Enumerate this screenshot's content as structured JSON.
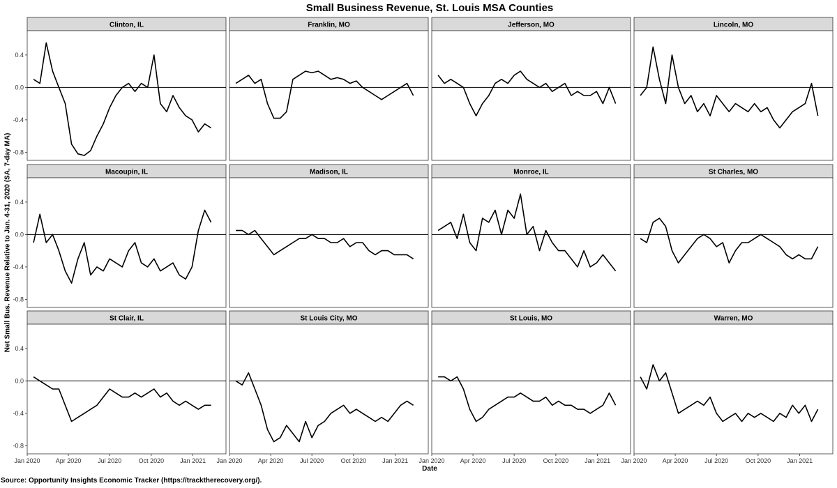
{
  "chart_data": {
    "type": "line",
    "title": "Small Business Revenue, St. Louis MSA Counties",
    "xlabel": "Date",
    "ylabel": "Net Small Bus. Revenue Relative to Jan. 4-31, 2020 (SA, 7-day MA)",
    "source": "Source: Opportunity Insights Economic Tracker (https://tracktherecovery.org/).",
    "ylim": [
      -0.9,
      0.7
    ],
    "yticks": [
      -0.8,
      -0.4,
      0.0,
      0.4
    ],
    "ytick_labels": [
      "-0.8",
      "-0.4",
      "0.0",
      "0.4"
    ],
    "xlim": [
      "2020-01-01",
      "2021-03-15"
    ],
    "xticks": [
      "2020-01-01",
      "2020-04-01",
      "2020-07-01",
      "2020-10-01",
      "2021-01-01"
    ],
    "xtick_labels": [
      "Jan 2020",
      "Apr 2020",
      "Jul 2020",
      "Oct 2020",
      "Jan 2021"
    ],
    "reference_line_y": 0,
    "grid": false,
    "line_color": "#000000",
    "strip_color": "#d9d9d9",
    "panels": [
      {
        "name": "Clinton, IL",
        "x": [
          "2020-01-15",
          "2020-01-29",
          "2020-02-12",
          "2020-02-26",
          "2020-03-11",
          "2020-03-25",
          "2020-04-08",
          "2020-04-22",
          "2020-05-06",
          "2020-05-20",
          "2020-06-03",
          "2020-06-17",
          "2020-07-01",
          "2020-07-15",
          "2020-07-29",
          "2020-08-12",
          "2020-08-26",
          "2020-09-09",
          "2020-09-23",
          "2020-10-07",
          "2020-10-21",
          "2020-11-04",
          "2020-11-18",
          "2020-12-02",
          "2020-12-16",
          "2020-12-30",
          "2021-01-13",
          "2021-01-27",
          "2021-02-10"
        ],
        "y": [
          0.1,
          0.05,
          0.55,
          0.2,
          0.0,
          -0.2,
          -0.7,
          -0.82,
          -0.84,
          -0.78,
          -0.6,
          -0.45,
          -0.25,
          -0.1,
          0.0,
          0.05,
          -0.05,
          0.05,
          0.0,
          0.4,
          -0.2,
          -0.3,
          -0.1,
          -0.25,
          -0.35,
          -0.4,
          -0.55,
          -0.45,
          -0.5
        ]
      },
      {
        "name": "Franklin, MO",
        "x": [
          "2020-01-15",
          "2020-01-29",
          "2020-02-12",
          "2020-02-26",
          "2020-03-11",
          "2020-03-25",
          "2020-04-08",
          "2020-04-22",
          "2020-05-06",
          "2020-05-20",
          "2020-06-03",
          "2020-06-17",
          "2020-07-01",
          "2020-07-15",
          "2020-07-29",
          "2020-08-12",
          "2020-08-26",
          "2020-09-09",
          "2020-09-23",
          "2020-10-07",
          "2020-10-21",
          "2020-11-04",
          "2020-11-18",
          "2020-12-02",
          "2020-12-16",
          "2020-12-30",
          "2021-01-13",
          "2021-01-27",
          "2021-02-10"
        ],
        "y": [
          0.05,
          0.1,
          0.15,
          0.05,
          0.1,
          -0.2,
          -0.38,
          -0.38,
          -0.3,
          0.1,
          0.15,
          0.2,
          0.18,
          0.2,
          0.15,
          0.1,
          0.12,
          0.1,
          0.05,
          0.08,
          0.0,
          -0.05,
          -0.1,
          -0.15,
          -0.1,
          -0.05,
          0.0,
          0.05,
          -0.1
        ]
      },
      {
        "name": "Jefferson, MO",
        "x": [
          "2020-01-15",
          "2020-01-29",
          "2020-02-12",
          "2020-02-26",
          "2020-03-11",
          "2020-03-25",
          "2020-04-08",
          "2020-04-22",
          "2020-05-06",
          "2020-05-20",
          "2020-06-03",
          "2020-06-17",
          "2020-07-01",
          "2020-07-15",
          "2020-07-29",
          "2020-08-12",
          "2020-08-26",
          "2020-09-09",
          "2020-09-23",
          "2020-10-07",
          "2020-10-21",
          "2020-11-04",
          "2020-11-18",
          "2020-12-02",
          "2020-12-16",
          "2020-12-30",
          "2021-01-13",
          "2021-01-27",
          "2021-02-10"
        ],
        "y": [
          0.15,
          0.05,
          0.1,
          0.05,
          0.0,
          -0.2,
          -0.35,
          -0.2,
          -0.1,
          0.05,
          0.1,
          0.05,
          0.15,
          0.2,
          0.1,
          0.05,
          0.0,
          0.05,
          -0.05,
          0.0,
          0.05,
          -0.1,
          -0.05,
          -0.1,
          -0.1,
          -0.05,
          -0.2,
          0.0,
          -0.2
        ]
      },
      {
        "name": "Lincoln, MO",
        "x": [
          "2020-01-15",
          "2020-01-29",
          "2020-02-12",
          "2020-02-26",
          "2020-03-11",
          "2020-03-25",
          "2020-04-08",
          "2020-04-22",
          "2020-05-06",
          "2020-05-20",
          "2020-06-03",
          "2020-06-17",
          "2020-07-01",
          "2020-07-15",
          "2020-07-29",
          "2020-08-12",
          "2020-08-26",
          "2020-09-09",
          "2020-09-23",
          "2020-10-07",
          "2020-10-21",
          "2020-11-04",
          "2020-11-18",
          "2020-12-02",
          "2020-12-16",
          "2020-12-30",
          "2021-01-13",
          "2021-01-27",
          "2021-02-10"
        ],
        "y": [
          -0.1,
          0.0,
          0.5,
          0.1,
          -0.2,
          0.4,
          0.0,
          -0.2,
          -0.1,
          -0.3,
          -0.2,
          -0.35,
          -0.1,
          -0.2,
          -0.3,
          -0.2,
          -0.25,
          -0.3,
          -0.2,
          -0.3,
          -0.25,
          -0.4,
          -0.5,
          -0.4,
          -0.3,
          -0.25,
          -0.2,
          0.05,
          -0.35
        ]
      },
      {
        "name": "Macoupin, IL",
        "x": [
          "2020-01-15",
          "2020-01-29",
          "2020-02-12",
          "2020-02-26",
          "2020-03-11",
          "2020-03-25",
          "2020-04-08",
          "2020-04-22",
          "2020-05-06",
          "2020-05-20",
          "2020-06-03",
          "2020-06-17",
          "2020-07-01",
          "2020-07-15",
          "2020-07-29",
          "2020-08-12",
          "2020-08-26",
          "2020-09-09",
          "2020-09-23",
          "2020-10-07",
          "2020-10-21",
          "2020-11-04",
          "2020-11-18",
          "2020-12-02",
          "2020-12-16",
          "2020-12-30",
          "2021-01-13",
          "2021-01-27",
          "2021-02-10"
        ],
        "y": [
          -0.1,
          0.25,
          -0.1,
          0.0,
          -0.2,
          -0.45,
          -0.6,
          -0.3,
          -0.1,
          -0.5,
          -0.4,
          -0.45,
          -0.3,
          -0.35,
          -0.4,
          -0.2,
          -0.1,
          -0.35,
          -0.4,
          -0.3,
          -0.45,
          -0.4,
          -0.35,
          -0.5,
          -0.55,
          -0.4,
          0.05,
          0.3,
          0.15
        ]
      },
      {
        "name": "Madison, IL",
        "x": [
          "2020-01-15",
          "2020-01-29",
          "2020-02-12",
          "2020-02-26",
          "2020-03-11",
          "2020-03-25",
          "2020-04-08",
          "2020-04-22",
          "2020-05-06",
          "2020-05-20",
          "2020-06-03",
          "2020-06-17",
          "2020-07-01",
          "2020-07-15",
          "2020-07-29",
          "2020-08-12",
          "2020-08-26",
          "2020-09-09",
          "2020-09-23",
          "2020-10-07",
          "2020-10-21",
          "2020-11-04",
          "2020-11-18",
          "2020-12-02",
          "2020-12-16",
          "2020-12-30",
          "2021-01-13",
          "2021-01-27",
          "2021-02-10"
        ],
        "y": [
          0.05,
          0.05,
          0.0,
          0.05,
          -0.05,
          -0.15,
          -0.25,
          -0.2,
          -0.15,
          -0.1,
          -0.05,
          -0.05,
          0.0,
          -0.05,
          -0.05,
          -0.1,
          -0.1,
          -0.05,
          -0.15,
          -0.1,
          -0.1,
          -0.2,
          -0.25,
          -0.2,
          -0.2,
          -0.25,
          -0.25,
          -0.25,
          -0.3
        ]
      },
      {
        "name": "Monroe, IL",
        "x": [
          "2020-01-15",
          "2020-01-29",
          "2020-02-12",
          "2020-02-26",
          "2020-03-11",
          "2020-03-25",
          "2020-04-08",
          "2020-04-22",
          "2020-05-06",
          "2020-05-20",
          "2020-06-03",
          "2020-06-17",
          "2020-07-01",
          "2020-07-15",
          "2020-07-29",
          "2020-08-12",
          "2020-08-26",
          "2020-09-09",
          "2020-09-23",
          "2020-10-07",
          "2020-10-21",
          "2020-11-04",
          "2020-11-18",
          "2020-12-02",
          "2020-12-16",
          "2020-12-30",
          "2021-01-13",
          "2021-01-27",
          "2021-02-10"
        ],
        "y": [
          0.05,
          0.1,
          0.15,
          -0.05,
          0.25,
          -0.1,
          -0.2,
          0.2,
          0.15,
          0.3,
          0.0,
          0.3,
          0.2,
          0.5,
          0.0,
          0.1,
          -0.2,
          0.05,
          -0.1,
          -0.2,
          -0.2,
          -0.3,
          -0.4,
          -0.2,
          -0.4,
          -0.35,
          -0.25,
          -0.35,
          -0.45
        ]
      },
      {
        "name": "St Charles, MO",
        "x": [
          "2020-01-15",
          "2020-01-29",
          "2020-02-12",
          "2020-02-26",
          "2020-03-11",
          "2020-03-25",
          "2020-04-08",
          "2020-04-22",
          "2020-05-06",
          "2020-05-20",
          "2020-06-03",
          "2020-06-17",
          "2020-07-01",
          "2020-07-15",
          "2020-07-29",
          "2020-08-12",
          "2020-08-26",
          "2020-09-09",
          "2020-09-23",
          "2020-10-07",
          "2020-10-21",
          "2020-11-04",
          "2020-11-18",
          "2020-12-02",
          "2020-12-16",
          "2020-12-30",
          "2021-01-13",
          "2021-01-27",
          "2021-02-10"
        ],
        "y": [
          -0.05,
          -0.1,
          0.15,
          0.2,
          0.1,
          -0.2,
          -0.35,
          -0.25,
          -0.15,
          -0.05,
          0.0,
          -0.05,
          -0.15,
          -0.1,
          -0.35,
          -0.2,
          -0.1,
          -0.1,
          -0.05,
          0.0,
          -0.05,
          -0.1,
          -0.15,
          -0.25,
          -0.3,
          -0.25,
          -0.3,
          -0.3,
          -0.15
        ]
      },
      {
        "name": "St Clair, IL",
        "x": [
          "2020-01-15",
          "2020-01-29",
          "2020-02-12",
          "2020-02-26",
          "2020-03-11",
          "2020-03-25",
          "2020-04-08",
          "2020-04-22",
          "2020-05-06",
          "2020-05-20",
          "2020-06-03",
          "2020-06-17",
          "2020-07-01",
          "2020-07-15",
          "2020-07-29",
          "2020-08-12",
          "2020-08-26",
          "2020-09-09",
          "2020-09-23",
          "2020-10-07",
          "2020-10-21",
          "2020-11-04",
          "2020-11-18",
          "2020-12-02",
          "2020-12-16",
          "2020-12-30",
          "2021-01-13",
          "2021-01-27",
          "2021-02-10"
        ],
        "y": [
          0.05,
          0.0,
          -0.05,
          -0.1,
          -0.1,
          -0.3,
          -0.5,
          -0.45,
          -0.4,
          -0.35,
          -0.3,
          -0.2,
          -0.1,
          -0.15,
          -0.2,
          -0.2,
          -0.15,
          -0.2,
          -0.15,
          -0.1,
          -0.2,
          -0.15,
          -0.25,
          -0.3,
          -0.25,
          -0.3,
          -0.35,
          -0.3,
          -0.3
        ]
      },
      {
        "name": "St Louis City, MO",
        "x": [
          "2020-01-15",
          "2020-01-29",
          "2020-02-12",
          "2020-02-26",
          "2020-03-11",
          "2020-03-25",
          "2020-04-08",
          "2020-04-22",
          "2020-05-06",
          "2020-05-20",
          "2020-06-03",
          "2020-06-17",
          "2020-07-01",
          "2020-07-15",
          "2020-07-29",
          "2020-08-12",
          "2020-08-26",
          "2020-09-09",
          "2020-09-23",
          "2020-10-07",
          "2020-10-21",
          "2020-11-04",
          "2020-11-18",
          "2020-12-02",
          "2020-12-16",
          "2020-12-30",
          "2021-01-13",
          "2021-01-27",
          "2021-02-10"
        ],
        "y": [
          0.0,
          -0.05,
          0.1,
          -0.1,
          -0.3,
          -0.6,
          -0.75,
          -0.7,
          -0.55,
          -0.65,
          -0.75,
          -0.5,
          -0.7,
          -0.55,
          -0.5,
          -0.4,
          -0.35,
          -0.3,
          -0.4,
          -0.35,
          -0.4,
          -0.45,
          -0.5,
          -0.45,
          -0.5,
          -0.4,
          -0.3,
          -0.25,
          -0.3
        ]
      },
      {
        "name": "St Louis, MO",
        "x": [
          "2020-01-15",
          "2020-01-29",
          "2020-02-12",
          "2020-02-26",
          "2020-03-11",
          "2020-03-25",
          "2020-04-08",
          "2020-04-22",
          "2020-05-06",
          "2020-05-20",
          "2020-06-03",
          "2020-06-17",
          "2020-07-01",
          "2020-07-15",
          "2020-07-29",
          "2020-08-12",
          "2020-08-26",
          "2020-09-09",
          "2020-09-23",
          "2020-10-07",
          "2020-10-21",
          "2020-11-04",
          "2020-11-18",
          "2020-12-02",
          "2020-12-16",
          "2020-12-30",
          "2021-01-13",
          "2021-01-27",
          "2021-02-10"
        ],
        "y": [
          0.05,
          0.05,
          0.0,
          0.05,
          -0.1,
          -0.35,
          -0.5,
          -0.45,
          -0.35,
          -0.3,
          -0.25,
          -0.2,
          -0.2,
          -0.15,
          -0.2,
          -0.25,
          -0.25,
          -0.2,
          -0.3,
          -0.25,
          -0.3,
          -0.3,
          -0.35,
          -0.35,
          -0.4,
          -0.35,
          -0.3,
          -0.15,
          -0.3
        ]
      },
      {
        "name": "Warren, MO",
        "x": [
          "2020-01-15",
          "2020-01-29",
          "2020-02-12",
          "2020-02-26",
          "2020-03-11",
          "2020-03-25",
          "2020-04-08",
          "2020-04-22",
          "2020-05-06",
          "2020-05-20",
          "2020-06-03",
          "2020-06-17",
          "2020-07-01",
          "2020-07-15",
          "2020-07-29",
          "2020-08-12",
          "2020-08-26",
          "2020-09-09",
          "2020-09-23",
          "2020-10-07",
          "2020-10-21",
          "2020-11-04",
          "2020-11-18",
          "2020-12-02",
          "2020-12-16",
          "2020-12-30",
          "2021-01-13",
          "2021-01-27",
          "2021-02-10"
        ],
        "y": [
          0.05,
          -0.1,
          0.2,
          0.0,
          0.1,
          -0.15,
          -0.4,
          -0.35,
          -0.3,
          -0.25,
          -0.3,
          -0.2,
          -0.4,
          -0.5,
          -0.45,
          -0.4,
          -0.5,
          -0.4,
          -0.45,
          -0.4,
          -0.45,
          -0.5,
          -0.4,
          -0.45,
          -0.3,
          -0.4,
          -0.3,
          -0.5,
          -0.35
        ]
      }
    ]
  }
}
